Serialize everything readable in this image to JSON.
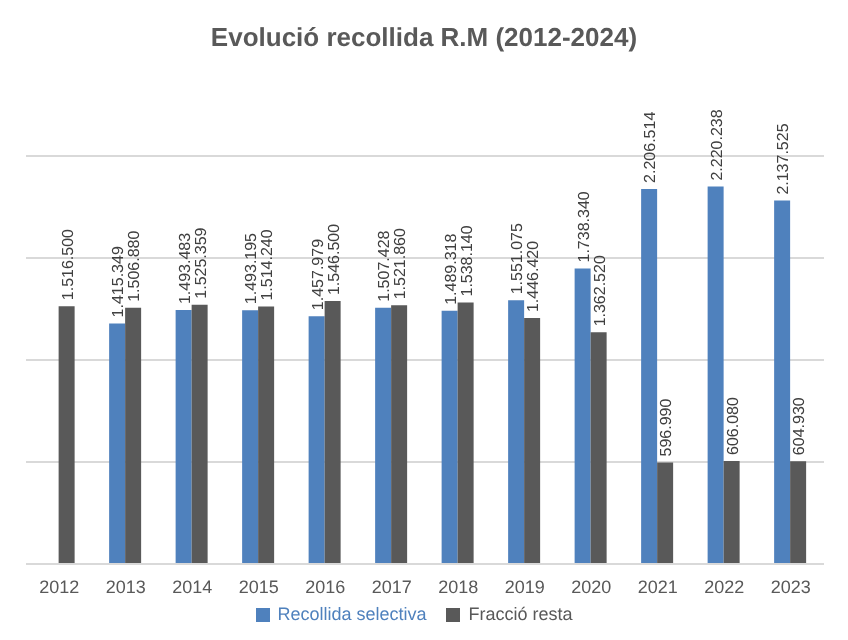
{
  "chart_data": {
    "type": "bar",
    "title": "Evolució recollida R.M (2012-2024)",
    "categories": [
      "2012",
      "2013",
      "2014",
      "2015",
      "2016",
      "2017",
      "2018",
      "2019",
      "2020",
      "2021",
      "2022",
      "2023"
    ],
    "series": [
      {
        "name": "Recollida selectiva",
        "color": "#4f81bd",
        "values": [
          null,
          1415349,
          1493483,
          1493195,
          1457979,
          1507428,
          1489318,
          1551075,
          1738340,
          2206514,
          2220238,
          2137525
        ],
        "value_labels": [
          null,
          "1.415.349",
          "1.493.483",
          "1.493.195",
          "1.457.979",
          "1.507.428",
          "1.489.318",
          "1.551.075",
          "1.738.340",
          "2.206.514",
          "2.220.238",
          "2.137.525"
        ]
      },
      {
        "name": "Fracció resta",
        "color": "#595959",
        "values": [
          1516500,
          1506880,
          1525359,
          1514240,
          1546500,
          1521860,
          1538140,
          1446420,
          1362520,
          596990,
          606080,
          604930
        ],
        "value_labels": [
          "1.516.500",
          "1.506.880",
          "1.525.359",
          "1.514.240",
          "1.546.500",
          "1.521.860",
          "1.538.140",
          "1.446.420",
          "1.362.520",
          "596.990",
          "606.080",
          "604.930"
        ]
      }
    ],
    "tick_labels": "x",
    "grid": "y",
    "legend": "bottom"
  }
}
